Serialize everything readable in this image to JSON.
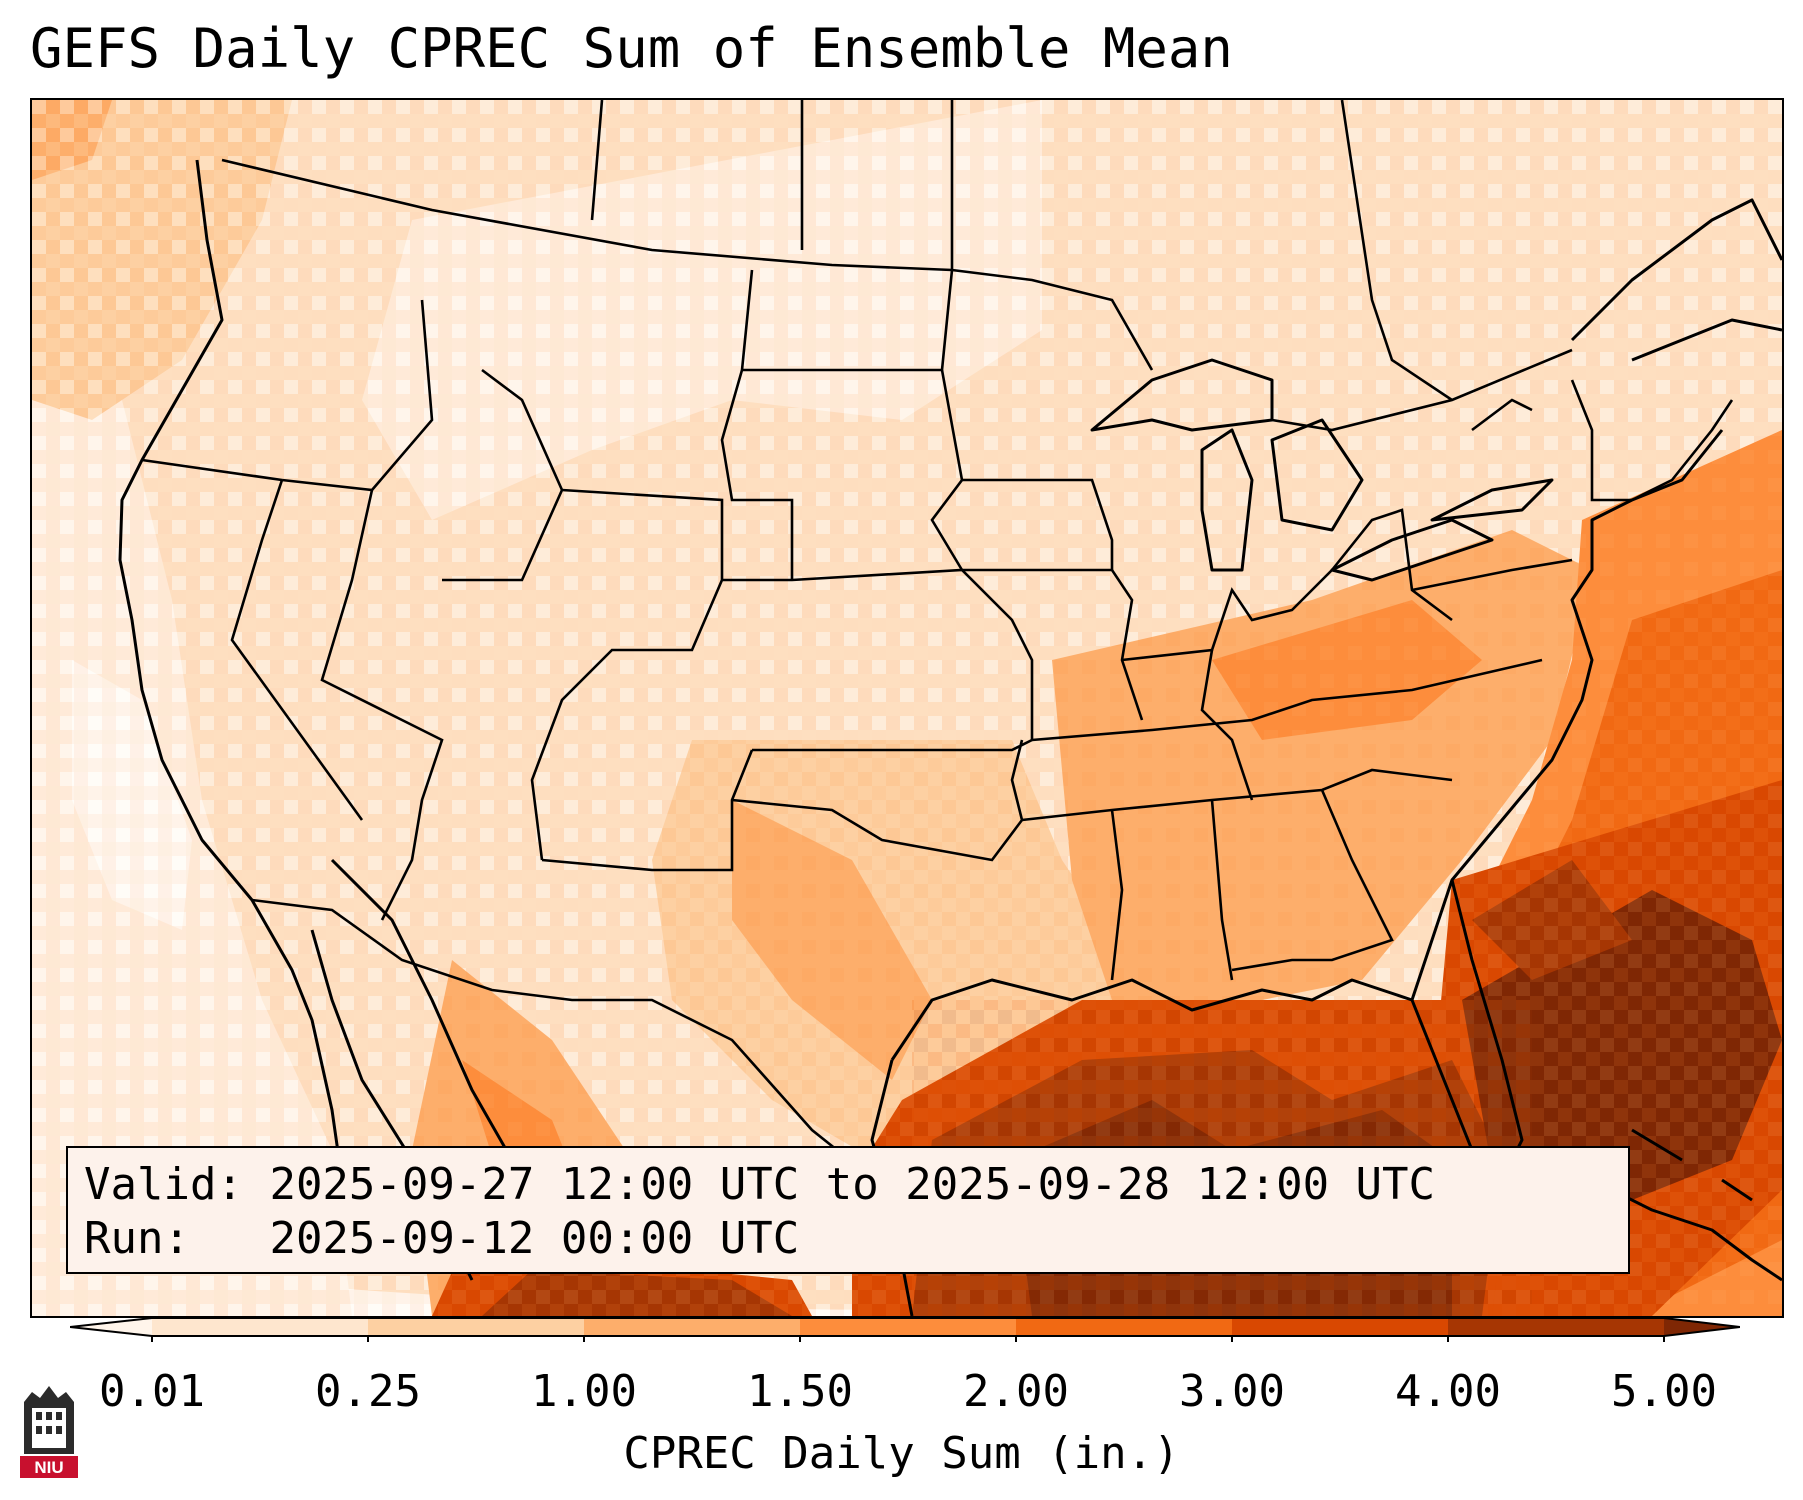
{
  "title": "GEFS Daily CPREC Sum of Ensemble Mean",
  "info": {
    "valid_label": "Valid:",
    "valid_value": "2025-09-27 12:00 UTC to 2025-09-28 12:00 UTC",
    "run_label": "Run:",
    "run_value": "2025-09-12 00:00 UTC"
  },
  "colorbar": {
    "label": "CPREC Daily Sum (in.)",
    "ticks": [
      "0.01",
      "0.25",
      "1.00",
      "1.50",
      "2.00",
      "3.00",
      "4.00",
      "5.00"
    ],
    "colors": [
      "#fff5eb",
      "#fee6ce",
      "#fdd0a2",
      "#fdae6b",
      "#fd8d3c",
      "#f16913",
      "#d94801",
      "#a63603",
      "#7f2704"
    ]
  },
  "logo": {
    "text": "NIU"
  }
}
